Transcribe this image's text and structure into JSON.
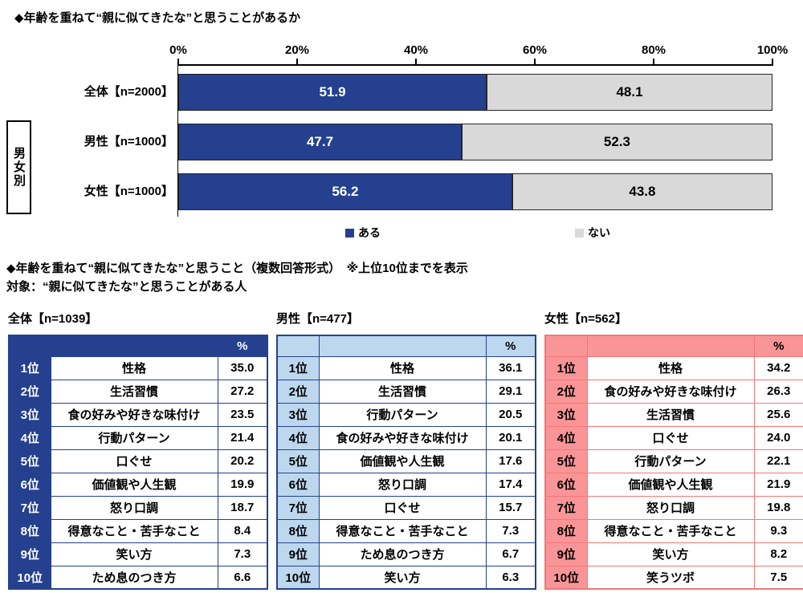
{
  "colors": {
    "navy": "#24408F",
    "gray": "#D9D9D9",
    "male_fill": "#BDD7EE",
    "male_border": "#24408F",
    "female_fill": "#FA9597",
    "female_border": "#F2777A",
    "bar_outline": "#262626"
  },
  "section1": {
    "title": "◆年齢を重ねて“親に似てきたな”と思うことがあるか"
  },
  "section2": {
    "title": "◆年齢を重ねて“親に似てきたな”と思うこと（複数回答形式）　※上位10位までを表示",
    "subtitle": "対象：“親に似てきたな”と思うことがある人"
  },
  "chart_data": [
    {
      "type": "bar",
      "orientation": "horizontal",
      "stacked": true,
      "xlim": [
        0,
        100
      ],
      "x_ticks": [
        "0%",
        "20%",
        "40%",
        "60%",
        "80%",
        "100%"
      ],
      "categories": [
        "全体【n=2000】",
        "男性【n=1000】",
        "女性【n=1000】"
      ],
      "series": [
        {
          "name": "ある",
          "color_key": "navy",
          "values": [
            51.9,
            47.7,
            56.2
          ]
        },
        {
          "name": "ない",
          "color_key": "gray",
          "values": [
            48.1,
            52.3,
            43.8
          ]
        }
      ],
      "group_label": "男女別",
      "legend_position": "bottom"
    },
    {
      "type": "table",
      "title": "全体【n=1039】",
      "theme": "overall",
      "columns": [
        "",
        "",
        "%"
      ],
      "rows": [
        {
          "rank": "1位",
          "item": "性格",
          "value": 35.0
        },
        {
          "rank": "2位",
          "item": "生活習慣",
          "value": 27.2
        },
        {
          "rank": "3位",
          "item": "食の好みや好きな味付け",
          "value": 23.5
        },
        {
          "rank": "4位",
          "item": "行動パターン",
          "value": 21.4
        },
        {
          "rank": "5位",
          "item": "口ぐせ",
          "value": 20.2
        },
        {
          "rank": "6位",
          "item": "価値観や人生観",
          "value": 19.9
        },
        {
          "rank": "7位",
          "item": "怒り口調",
          "value": 18.7
        },
        {
          "rank": "8位",
          "item": "得意なこと・苦手なこと",
          "value": 8.4
        },
        {
          "rank": "9位",
          "item": "笑い方",
          "value": 7.3
        },
        {
          "rank": "10位",
          "item": "ため息のつき方",
          "value": 6.6
        }
      ]
    },
    {
      "type": "table",
      "title": "男性【n=477】",
      "theme": "male",
      "columns": [
        "",
        "",
        "%"
      ],
      "rows": [
        {
          "rank": "1位",
          "item": "性格",
          "value": 36.1
        },
        {
          "rank": "2位",
          "item": "生活習慣",
          "value": 29.1
        },
        {
          "rank": "3位",
          "item": "行動パターン",
          "value": 20.5
        },
        {
          "rank": "4位",
          "item": "食の好みや好きな味付け",
          "value": 20.1
        },
        {
          "rank": "5位",
          "item": "価値観や人生観",
          "value": 17.6
        },
        {
          "rank": "6位",
          "item": "怒り口調",
          "value": 17.4
        },
        {
          "rank": "7位",
          "item": "口ぐせ",
          "value": 15.7
        },
        {
          "rank": "8位",
          "item": "得意なこと・苦手なこと",
          "value": 7.3
        },
        {
          "rank": "9位",
          "item": "ため息のつき方",
          "value": 6.7
        },
        {
          "rank": "10位",
          "item": "笑い方",
          "value": 6.3
        }
      ]
    },
    {
      "type": "table",
      "title": "女性【n=562】",
      "theme": "female",
      "columns": [
        "",
        "",
        "%"
      ],
      "rows": [
        {
          "rank": "1位",
          "item": "性格",
          "value": 34.2
        },
        {
          "rank": "2位",
          "item": "食の好みや好きな味付け",
          "value": 26.3
        },
        {
          "rank": "3位",
          "item": "生活習慣",
          "value": 25.6
        },
        {
          "rank": "4位",
          "item": "口ぐせ",
          "value": 24.0
        },
        {
          "rank": "5位",
          "item": "行動パターン",
          "value": 22.1
        },
        {
          "rank": "6位",
          "item": "価値観や人生観",
          "value": 21.9
        },
        {
          "rank": "7位",
          "item": "怒り口調",
          "value": 19.8
        },
        {
          "rank": "8位",
          "item": "得意なこと・苦手なこと",
          "value": 9.3
        },
        {
          "rank": "9位",
          "item": "笑い方",
          "value": 8.2
        },
        {
          "rank": "10位",
          "item": "笑うツボ",
          "value": 7.5
        }
      ]
    }
  ]
}
